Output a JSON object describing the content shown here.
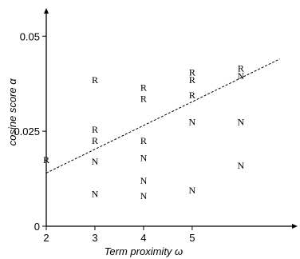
{
  "chart_data": {
    "type": "scatter",
    "xlabel": "Term proximity ω",
    "ylabel": "cosine score α",
    "xlim": [
      2,
      7.2
    ],
    "ylim": [
      0,
      0.057
    ],
    "x_ticks": [
      "2",
      "3",
      "4",
      "5"
    ],
    "x_tick_values": [
      2,
      3,
      4,
      5
    ],
    "y_ticks": [
      "0",
      "0.025",
      "0.05"
    ],
    "y_tick_values": [
      0,
      0.025,
      0.05
    ],
    "grid": false,
    "legend": "none",
    "series": [
      {
        "marker": "R",
        "points": [
          {
            "x": 2,
            "y": 0.0175
          },
          {
            "x": 3,
            "y": 0.0385
          },
          {
            "x": 3,
            "y": 0.0255
          },
          {
            "x": 3,
            "y": 0.0225
          },
          {
            "x": 4,
            "y": 0.0365
          },
          {
            "x": 4,
            "y": 0.0335
          },
          {
            "x": 4,
            "y": 0.0225
          },
          {
            "x": 5,
            "y": 0.0405
          },
          {
            "x": 5,
            "y": 0.0385
          },
          {
            "x": 5,
            "y": 0.0345
          },
          {
            "x": 6,
            "y": 0.0415
          }
        ]
      },
      {
        "marker": "N",
        "points": [
          {
            "x": 3,
            "y": 0.017
          },
          {
            "x": 3,
            "y": 0.0085
          },
          {
            "x": 4,
            "y": 0.018
          },
          {
            "x": 4,
            "y": 0.012
          },
          {
            "x": 4,
            "y": 0.008
          },
          {
            "x": 5,
            "y": 0.0275
          },
          {
            "x": 5,
            "y": 0.0095
          },
          {
            "x": 6,
            "y": 0.0395
          },
          {
            "x": 6,
            "y": 0.0275
          },
          {
            "x": 6,
            "y": 0.016
          }
        ]
      }
    ],
    "trendline": {
      "style": "dashed",
      "x": [
        2,
        6.8
      ],
      "y": [
        0.014,
        0.044
      ]
    }
  }
}
